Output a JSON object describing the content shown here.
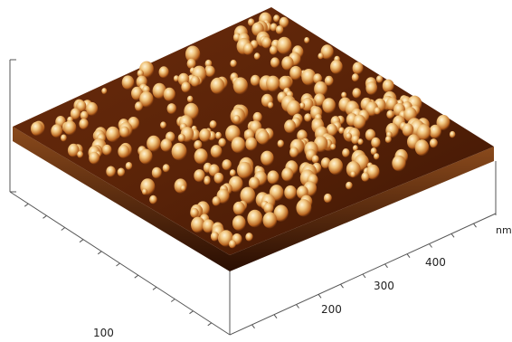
{
  "figure": {
    "axis_unit": "nm",
    "x_axis_ticks": [
      "100",
      "200",
      "300",
      "400"
    ],
    "colors": {
      "background": "#ffffff",
      "surface_dark": "#4a1d06",
      "surface_mid": "#7a3410",
      "peak_mid": "#c8782a",
      "peak_light": "#f3d39a",
      "peak_highlight": "#fff4d6",
      "axis": "#555555"
    }
  }
}
